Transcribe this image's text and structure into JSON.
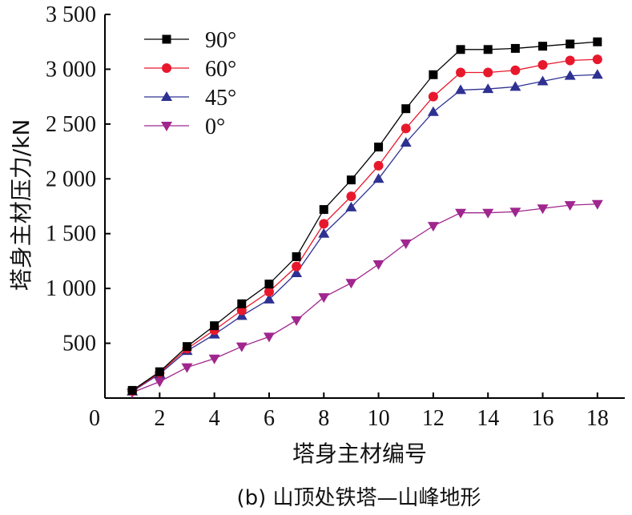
{
  "chart_data": {
    "type": "line",
    "title": "",
    "caption": "(b) 山顶处铁塔—山峰地形",
    "xlabel": "塔身主材编号",
    "ylabel": "塔身主材压力/kN",
    "xlim": [
      0,
      19
    ],
    "ylim": [
      0,
      3500
    ],
    "xticks": [
      0,
      2,
      4,
      6,
      8,
      10,
      12,
      14,
      16,
      18
    ],
    "xtick_labels": [
      "0",
      "2",
      "4",
      "6",
      "8",
      "10",
      "12",
      "14",
      "16",
      "18"
    ],
    "yticks": [
      500,
      1000,
      1500,
      2000,
      2500,
      3000,
      3500
    ],
    "ytick_labels": [
      "500",
      "1 000",
      "1 500",
      "2 000",
      "2 500",
      "3 000",
      "3 500"
    ],
    "legend_position": "top-left",
    "grid": false,
    "x": [
      1,
      2,
      3,
      4,
      5,
      6,
      7,
      8,
      9,
      10,
      11,
      12,
      13,
      14,
      15,
      16,
      17,
      18
    ],
    "series": [
      {
        "name": "90°",
        "color": "#000000",
        "marker": "square",
        "values": [
          70,
          240,
          470,
          660,
          860,
          1040,
          1290,
          1720,
          1990,
          2290,
          2640,
          2950,
          3180,
          3180,
          3190,
          3210,
          3230,
          3250
        ]
      },
      {
        "name": "60°",
        "color": "#e8182c",
        "marker": "circle",
        "values": [
          65,
          230,
          450,
          620,
          800,
          970,
          1200,
          1590,
          1840,
          2120,
          2460,
          2750,
          2970,
          2970,
          2990,
          3040,
          3080,
          3090
        ]
      },
      {
        "name": "45°",
        "color": "#2e3192",
        "marker": "triangle-up",
        "values": [
          60,
          220,
          430,
          580,
          750,
          900,
          1140,
          1500,
          1740,
          2000,
          2330,
          2610,
          2810,
          2820,
          2840,
          2890,
          2940,
          2950
        ]
      },
      {
        "name": "0°",
        "color": "#a0268e",
        "marker": "triangle-down",
        "values": [
          50,
          150,
          280,
          360,
          470,
          560,
          710,
          920,
          1050,
          1220,
          1410,
          1570,
          1690,
          1690,
          1700,
          1730,
          1760,
          1770
        ]
      }
    ]
  }
}
